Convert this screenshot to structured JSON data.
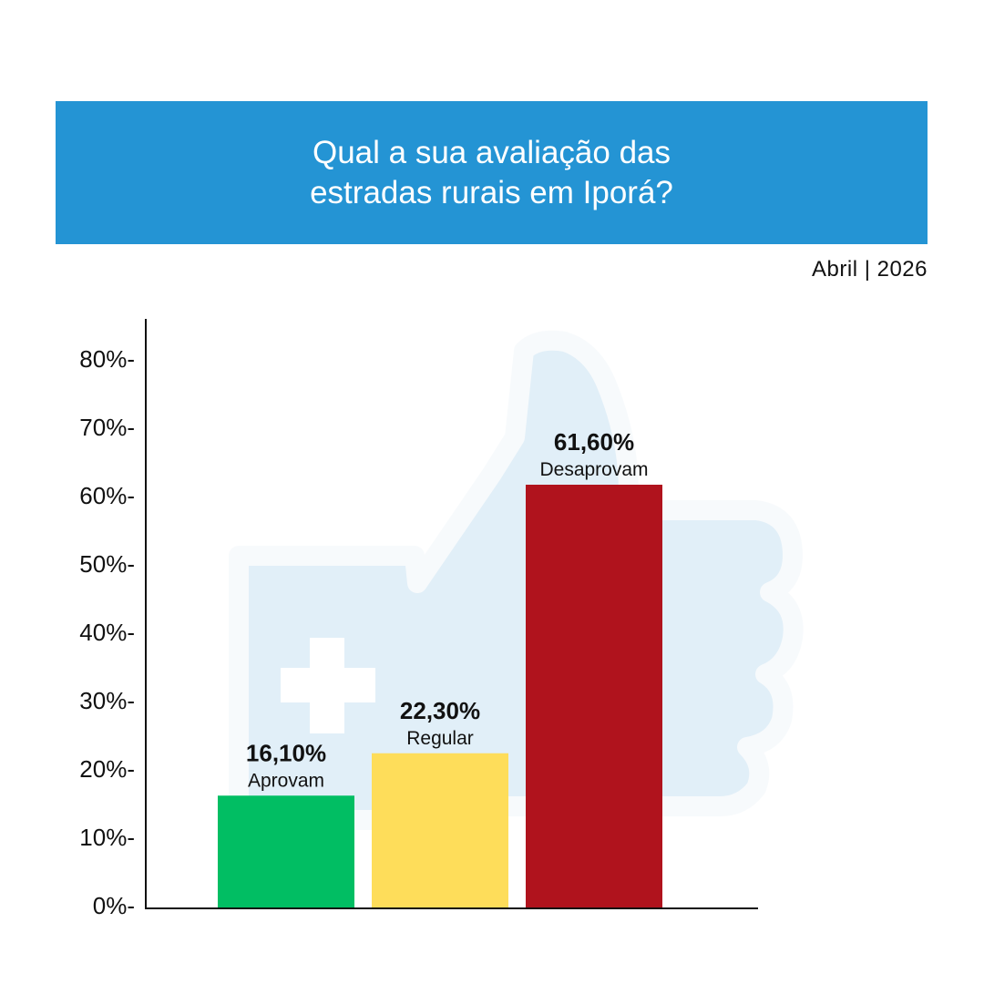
{
  "header": {
    "title_line1": "Qual a sua avaliação das",
    "title_line2": "estradas rurais em Iporá?",
    "date": "Abril | 2026"
  },
  "chart_data": {
    "type": "bar",
    "categories": [
      "Aprovam",
      "Regular",
      "Desaprovam"
    ],
    "values": [
      16.1,
      22.3,
      61.6
    ],
    "value_labels": [
      "16,10%",
      "22,30%",
      "61,60%"
    ],
    "colors": [
      "#01be63",
      "#fedd5a",
      "#b0131d"
    ],
    "yticks": [
      "0%",
      "10%",
      "20%",
      "30%",
      "40%",
      "50%",
      "60%",
      "70%",
      "80%"
    ],
    "ylim": [
      0,
      80
    ],
    "grid": false,
    "background_icon": "thumbs-up-icon"
  }
}
